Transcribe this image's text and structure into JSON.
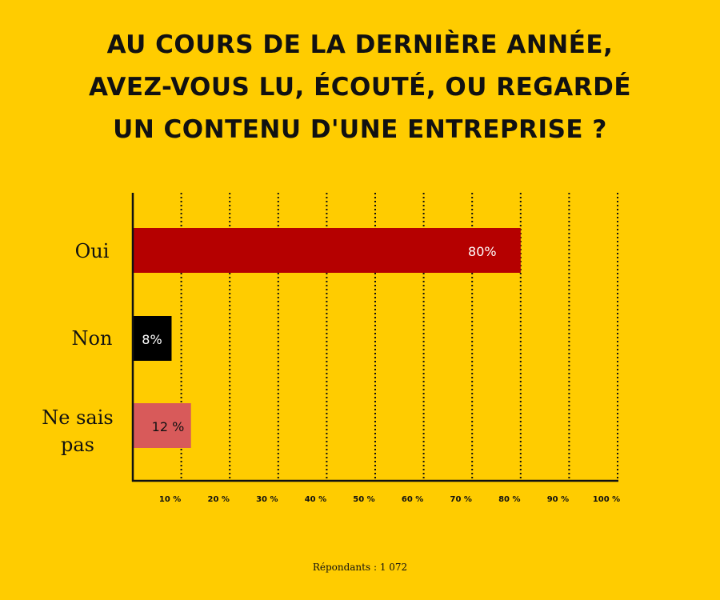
{
  "title_lines": [
    "Au cours de la dernière année,",
    "avez-vous lu, écouté, ou regardé",
    "un contenu d'une entreprise ?"
  ],
  "footnote": "Répondants : 1 072",
  "chart_data": {
    "type": "bar",
    "orientation": "horizontal",
    "categories": [
      "Oui",
      "Non",
      "Ne sais pas"
    ],
    "values": [
      80,
      8,
      12
    ],
    "value_labels": [
      "80%",
      "8%",
      "12 %"
    ],
    "colors": [
      "#B50000",
      "#000000",
      "#D85A5A"
    ],
    "xlim": [
      0,
      100
    ],
    "x_ticks": [
      10,
      20,
      30,
      40,
      50,
      60,
      70,
      80,
      90,
      100
    ],
    "x_tick_labels": [
      "10 %",
      "20 %",
      "30 %",
      "40 %",
      "50 %",
      "60 %",
      "70 %",
      "80 %",
      "90 %",
      "100 %"
    ],
    "grid": "vertical dotted"
  }
}
